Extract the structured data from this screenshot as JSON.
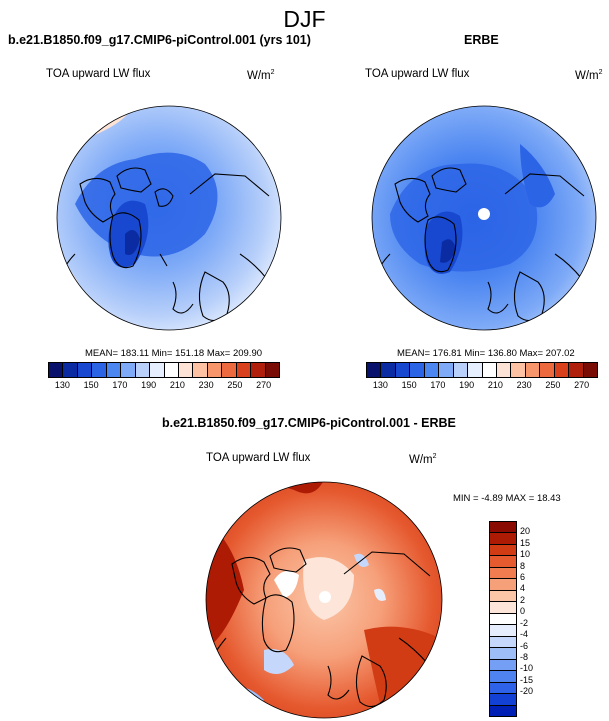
{
  "page": {
    "title": "DJF"
  },
  "colors": {
    "cbar_top": [
      "#08116b",
      "#0b2ba3",
      "#1748cf",
      "#2c64e6",
      "#4c86f1",
      "#7eaaf7",
      "#b8d0fa",
      "#e6efff",
      "#ffffff",
      "#fde3d5",
      "#fcc2a3",
      "#f7966b",
      "#ec6a3d",
      "#d9411c",
      "#b01f0c",
      "#7a0c06"
    ],
    "cbar_diff": [
      "#0020b5",
      "#1341d6",
      "#2e62e8",
      "#4f84f0",
      "#749ff5",
      "#9ebef8",
      "#c5d8fb",
      "#e6eefd",
      "#ffffff",
      "#fde6d9",
      "#fbc6a8",
      "#f6a07a",
      "#f07c50",
      "#e65a30",
      "#d23c15",
      "#ad1b05",
      "#8a0b02"
    ]
  },
  "chart_data": [
    {
      "type": "heatmap",
      "projection": "north-polar-stereographic",
      "title": "b.e21.B1850.f09_g17.CMIP6-piControl.001 (yrs 101)",
      "variable": "TOA upward LW flux",
      "units": "W/m",
      "units_exp": "2",
      "stats_text": "MEAN= 183.11  Min= 151.18  Max= 209.90",
      "mean": 183.11,
      "min": 151.18,
      "max": 209.9,
      "levels": [
        130,
        140,
        150,
        160,
        170,
        180,
        190,
        200,
        210,
        220,
        230,
        240,
        250,
        260,
        270
      ],
      "tick_labels": [
        "130",
        "150",
        "170",
        "190",
        "210",
        "230",
        "250",
        "270"
      ]
    },
    {
      "type": "heatmap",
      "projection": "north-polar-stereographic",
      "title": "ERBE",
      "variable": "TOA upward LW flux",
      "units": "W/m",
      "units_exp": "2",
      "stats_text": "MEAN= 176.81  Min= 136.80  Max= 207.02",
      "mean": 176.81,
      "min": 136.8,
      "max": 207.02,
      "levels": [
        130,
        140,
        150,
        160,
        170,
        180,
        190,
        200,
        210,
        220,
        230,
        240,
        250,
        260,
        270
      ],
      "tick_labels": [
        "130",
        "150",
        "170",
        "190",
        "210",
        "230",
        "250",
        "270"
      ]
    },
    {
      "type": "heatmap",
      "projection": "north-polar-stereographic",
      "title": "b.e21.B1850.f09_g17.CMIP6-piControl.001 - ERBE",
      "variable": "TOA upward LW flux",
      "units": "W/m",
      "units_exp": "2",
      "stats_text": "MIN =  -4.89 MAX =  18.43",
      "min": -4.89,
      "max": 18.43,
      "levels": [
        -20,
        -15,
        -10,
        -8,
        -6,
        -4,
        -2,
        0,
        2,
        4,
        6,
        8,
        10,
        15,
        20
      ],
      "tick_labels": [
        "20",
        "15",
        "10",
        "8",
        "6",
        "4",
        "2",
        "0",
        "-2",
        "-4",
        "-6",
        "-8",
        "-10",
        "-15",
        "-20"
      ]
    }
  ]
}
